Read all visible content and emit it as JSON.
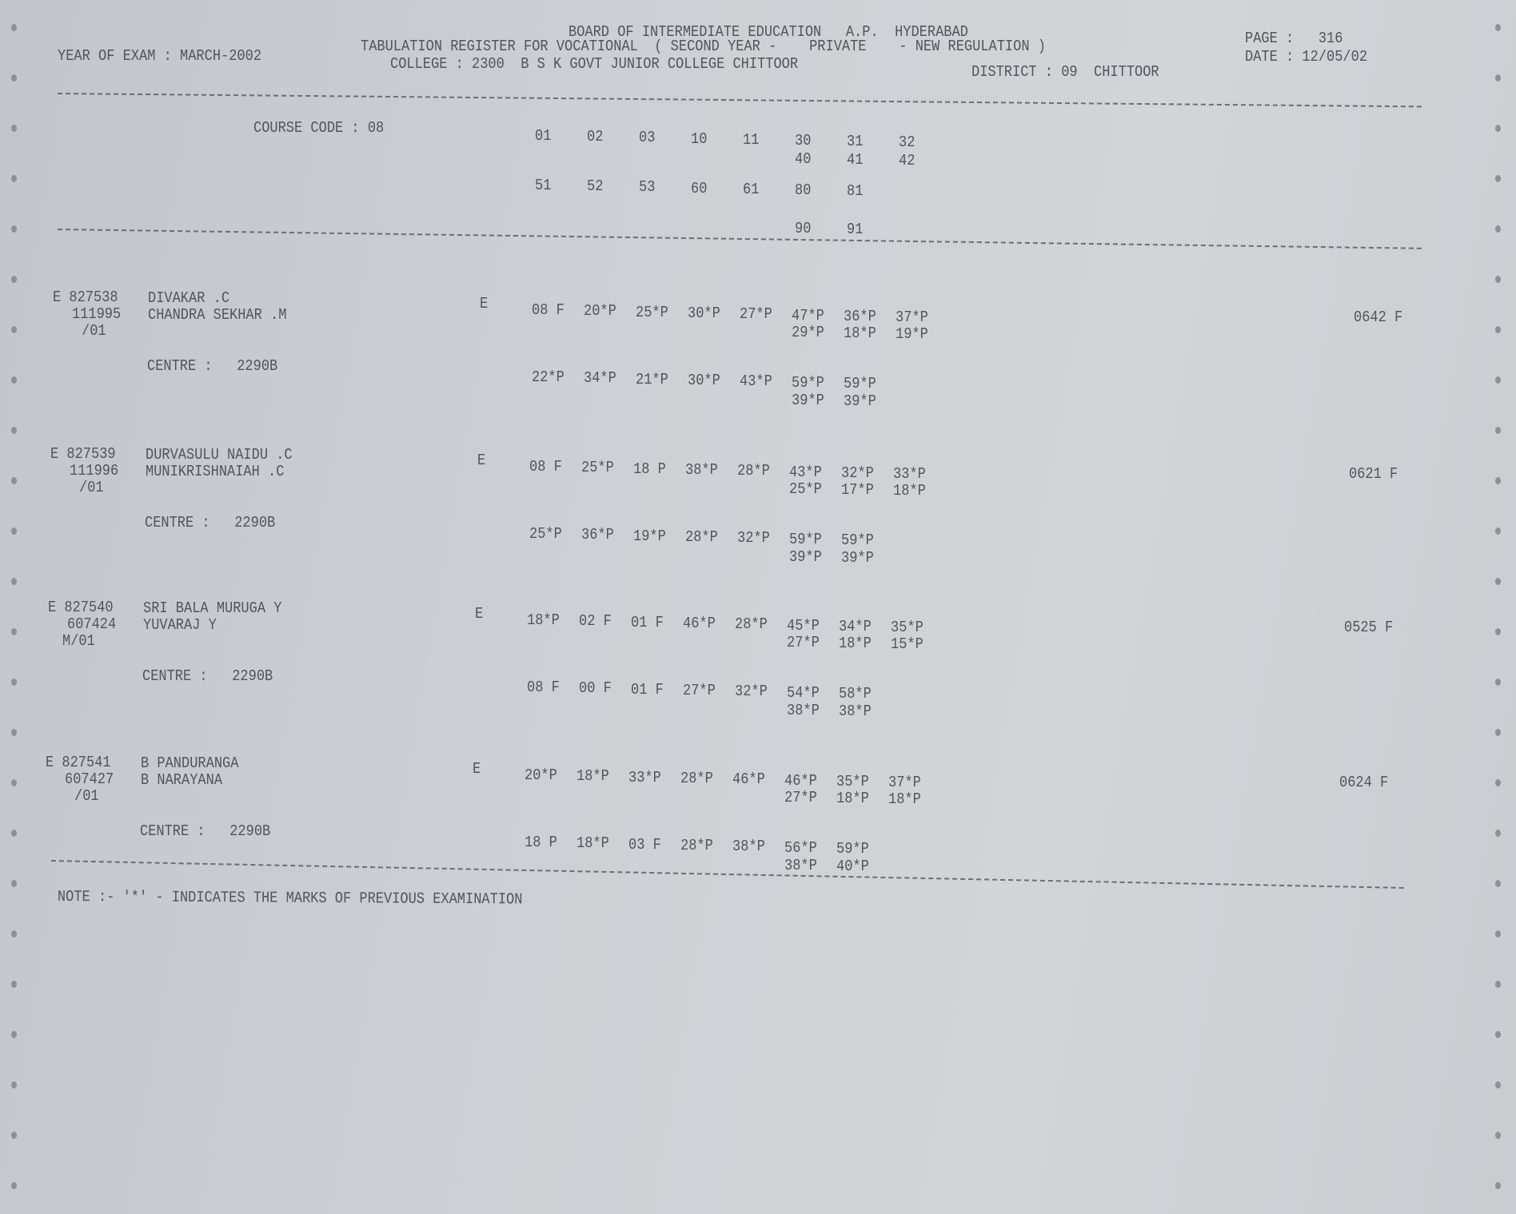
{
  "header": {
    "board": "BOARD OF INTERMEDIATE EDUCATION   A.P.  HYDERABAD",
    "title": "TABULATION REGISTER FOR VOCATIONAL  ( SECOND YEAR -    PRIVATE    - NEW REGULATION )",
    "college": "COLLEGE : 2300  B S K GOVT JUNIOR COLLEGE CHITTOOR",
    "district": "DISTRICT : 09  CHITTOOR",
    "year_of_exam": "YEAR OF EXAM : MARCH-2002",
    "page": "PAGE :   316",
    "date": "DATE : 12/05/02"
  },
  "course": {
    "label": "COURSE CODE : 08",
    "row1": [
      "01",
      "02",
      "03",
      "10",
      "11",
      "30",
      "31",
      "32"
    ],
    "row2": [
      "40",
      "41",
      "42"
    ],
    "row3": [
      "51",
      "52",
      "53",
      "60",
      "61",
      "80",
      "81"
    ],
    "row4": [
      "90",
      "91"
    ]
  },
  "students": [
    {
      "id": "E 827538",
      "reg": "111995",
      "suffix": "/01",
      "name": "DIVAKAR .C",
      "father": "CHANDRA SEKHAR .M",
      "medium": "E",
      "centre": "CENTRE :   2290B",
      "marks1": [
        "08 F",
        "20*P",
        "25*P",
        "30*P",
        "27*P",
        "47*P",
        "36*P",
        "37*P"
      ],
      "marks1b": [
        "29*P",
        "18*P",
        "19*P"
      ],
      "marks2": [
        "22*P",
        "34*P",
        "21*P",
        "30*P",
        "43*P",
        "59*P",
        "59*P"
      ],
      "marks2b": [
        "39*P",
        "39*P"
      ],
      "total": "0642 F"
    },
    {
      "id": "E 827539",
      "reg": "111996",
      "suffix": "/01",
      "name": "DURVASULU NAIDU .C",
      "father": "MUNIKRISHNAIAH .C",
      "medium": "E",
      "centre": "CENTRE :   2290B",
      "marks1": [
        "08 F",
        "25*P",
        "18 P",
        "38*P",
        "28*P",
        "43*P",
        "32*P",
        "33*P"
      ],
      "marks1b": [
        "25*P",
        "17*P",
        "18*P"
      ],
      "marks2": [
        "25*P",
        "36*P",
        "19*P",
        "28*P",
        "32*P",
        "59*P",
        "59*P"
      ],
      "marks2b": [
        "39*P",
        "39*P"
      ],
      "total": "0621 F"
    },
    {
      "id": "E 827540",
      "reg": "607424",
      "suffix": "M/01",
      "name": "SRI BALA MURUGA Y",
      "father": "YUVARAJ Y",
      "medium": "E",
      "centre": "CENTRE :   2290B",
      "marks1": [
        "18*P",
        "02 F",
        "01 F",
        "46*P",
        "28*P",
        "45*P",
        "34*P",
        "35*P"
      ],
      "marks1b": [
        "27*P",
        "18*P",
        "15*P"
      ],
      "marks2": [
        "08 F",
        "00 F",
        "01 F",
        "27*P",
        "32*P",
        "54*P",
        "58*P"
      ],
      "marks2b": [
        "38*P",
        "38*P"
      ],
      "total": "0525 F"
    },
    {
      "id": "E 827541",
      "reg": "607427",
      "suffix": "/01",
      "name": "B PANDURANGA",
      "father": "B NARAYANA",
      "medium": "E",
      "centre": "CENTRE :   2290B",
      "marks1": [
        "20*P",
        "18*P",
        "33*P",
        "28*P",
        "46*P",
        "46*P",
        "35*P",
        "37*P"
      ],
      "marks1b": [
        "27*P",
        "18*P",
        "18*P"
      ],
      "marks2": [
        "18 P",
        "18*P",
        "03 F",
        "28*P",
        "38*P",
        "56*P",
        "59*P"
      ],
      "marks2b": [
        "38*P",
        "40*P"
      ],
      "total": "0624 F"
    }
  ],
  "note": "NOTE :- '*' - INDICATES THE MARKS OF PREVIOUS EXAMINATION",
  "colors": {
    "paper": "#cdd0d4",
    "ink": "#50545c"
  }
}
